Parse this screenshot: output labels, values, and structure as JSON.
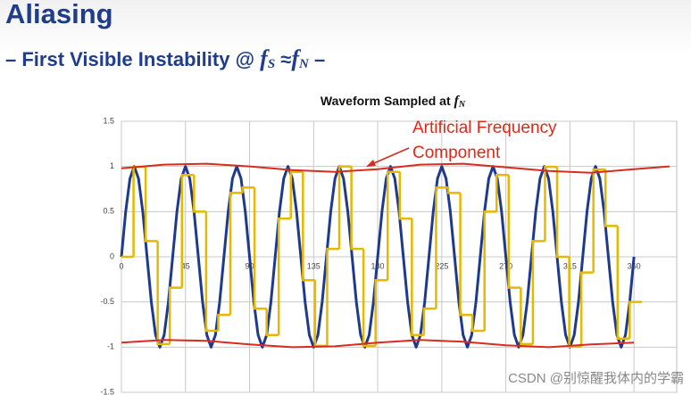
{
  "slide": {
    "title": "Aliasing",
    "subtitle": {
      "lead": "– First Visible Instability @",
      "f1": "f",
      "s1": "S",
      "op": "≈",
      "f2": "f",
      "s2": "N",
      "tail": "–"
    },
    "watermark": "CSDN @别惊醒我体内的学霸"
  },
  "chart_data": {
    "type": "line",
    "title": {
      "text": "Waveform Sampled at",
      "var": "f",
      "sub": "N"
    },
    "annotation": [
      "Artificial Frequency",
      "Component"
    ],
    "xlim": [
      0,
      390
    ],
    "ylim": [
      -1.5,
      1.5
    ],
    "xticks": [
      0,
      45,
      90,
      135,
      180,
      225,
      270,
      315,
      360
    ],
    "yticks": [
      1.5,
      1,
      0.5,
      0,
      -0.5,
      -1,
      -1.5
    ],
    "grid": true,
    "series": [
      {
        "color": "#1e3a8c",
        "width": 3,
        "x": [
          0,
          3,
          6,
          9,
          12,
          15,
          18,
          21,
          24,
          27,
          30,
          33,
          36,
          39,
          42,
          45,
          48,
          51,
          54,
          57,
          60,
          63,
          66,
          69,
          72,
          75,
          78,
          81,
          84,
          87,
          90,
          93,
          96,
          99,
          102,
          105,
          108,
          111,
          114,
          117,
          120,
          123,
          126,
          129,
          132,
          135,
          138,
          141,
          144,
          147,
          150,
          153,
          156,
          159,
          162,
          165,
          168,
          171,
          174,
          177,
          180,
          183,
          186,
          189,
          192,
          195,
          198,
          201,
          204,
          207,
          210,
          213,
          216,
          219,
          222,
          225,
          228,
          231,
          234,
          237,
          240,
          243,
          246,
          249,
          252,
          255,
          258,
          261,
          264,
          267,
          270,
          273,
          276,
          279,
          282,
          285,
          288,
          291,
          294,
          297,
          300,
          303,
          306,
          309,
          312,
          315,
          318,
          321,
          324,
          327,
          330,
          333,
          336,
          339,
          342,
          345,
          348,
          351,
          354,
          357,
          360
        ],
        "values": [
          0,
          0.5,
          0.866,
          1,
          0.866,
          0.5,
          0,
          -0.5,
          -0.866,
          -1,
          -0.866,
          -0.5,
          0,
          0.5,
          0.866,
          1,
          0.866,
          0.5,
          0,
          -0.5,
          -0.866,
          -1,
          -0.866,
          -0.5,
          0,
          0.5,
          0.866,
          1,
          0.866,
          0.5,
          0,
          -0.5,
          -0.866,
          -1,
          -0.866,
          -0.5,
          0,
          0.5,
          0.866,
          1,
          0.866,
          0.5,
          0,
          -0.5,
          -0.866,
          -1,
          -0.866,
          -0.5,
          0,
          0.5,
          0.866,
          1,
          0.866,
          0.5,
          0,
          -0.5,
          -0.866,
          -1,
          -0.866,
          -0.5,
          0,
          0.5,
          0.866,
          1,
          0.866,
          0.5,
          0,
          -0.5,
          -0.866,
          -1,
          -0.866,
          -0.5,
          0,
          0.5,
          0.866,
          1,
          0.866,
          0.5,
          0,
          -0.5,
          -0.866,
          -1,
          -0.866,
          -0.5,
          0,
          0.5,
          0.866,
          1,
          0.866,
          0.5,
          0,
          -0.5,
          -0.866,
          -1,
          -0.866,
          -0.5,
          0,
          0.5,
          0.866,
          1,
          0.866,
          0.5,
          0,
          -0.5,
          -0.866,
          -1,
          -0.866,
          -0.5,
          0,
          0.5,
          0.866,
          1,
          0.866,
          0.5,
          0,
          -0.5,
          -0.866,
          -1,
          -0.866,
          -0.5,
          0
        ]
      },
      {
        "color": "#e6b800",
        "width": 2.5,
        "step": true,
        "x": [
          0,
          8.5,
          17,
          25.5,
          34,
          42.5,
          51,
          59.5,
          68,
          76.5,
          85,
          93.5,
          102,
          110.5,
          119,
          127.5,
          136,
          144.5,
          153,
          161.5,
          170,
          178.5,
          187,
          195.5,
          204,
          212.5,
          221,
          229.5,
          238,
          246.5,
          255,
          263.5,
          272,
          280.5,
          289,
          297.5,
          306,
          314.5,
          323,
          331.5,
          340,
          348.5,
          357
        ],
        "values": [
          0,
          0.996,
          0.174,
          -0.966,
          -0.342,
          0.906,
          0.5,
          -0.819,
          -0.643,
          0.707,
          0.766,
          -0.574,
          -0.866,
          0.423,
          0.94,
          -0.259,
          -0.985,
          0.087,
          1,
          0.087,
          -0.985,
          -0.259,
          0.94,
          0.423,
          -0.866,
          -0.574,
          0.766,
          0.707,
          -0.643,
          -0.819,
          0.5,
          0.906,
          -0.342,
          -0.966,
          0.174,
          0.996,
          0,
          -0.996,
          -0.174,
          0.966,
          0.342,
          -0.906,
          -0.5
        ]
      },
      {
        "color": "#d92b1e",
        "width": 2,
        "x": [
          0,
          30,
          60,
          90,
          120,
          150,
          180,
          210,
          240,
          270,
          300,
          330,
          360,
          385
        ],
        "values": [
          0.98,
          1.02,
          1.03,
          1.0,
          0.96,
          0.94,
          0.97,
          1.02,
          1.03,
          0.99,
          0.95,
          0.93,
          0.97,
          1.0
        ]
      },
      {
        "color": "#d92b1e",
        "width": 2,
        "x": [
          0,
          30,
          60,
          90,
          120,
          150,
          180,
          210,
          240,
          270,
          300,
          330,
          360
        ],
        "values": [
          -0.95,
          -0.92,
          -0.93,
          -0.97,
          -1.0,
          -0.99,
          -0.95,
          -0.92,
          -0.94,
          -0.98,
          -1.0,
          -0.97,
          -0.95
        ]
      }
    ]
  }
}
